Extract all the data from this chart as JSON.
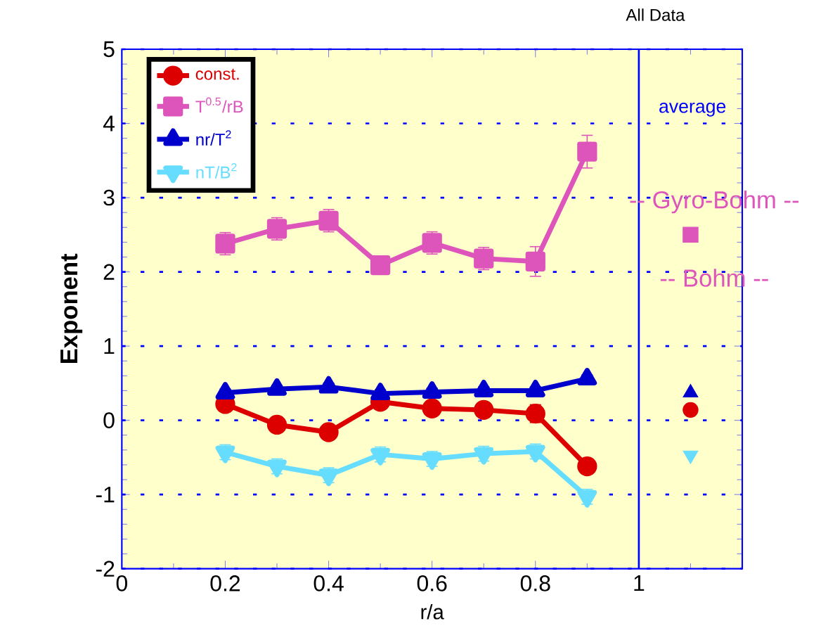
{
  "chart_data": {
    "type": "line",
    "title": "All Data",
    "xlabel": "r/a",
    "ylabel": "Exponent",
    "x": [
      0.2,
      0.3,
      0.4,
      0.5,
      0.6,
      0.7,
      0.8,
      0.9,
      1.1
    ],
    "xlim": [
      0,
      1.2
    ],
    "ylim": [
      -2,
      5
    ],
    "xticks": [
      0,
      0.2,
      0.4,
      0.6,
      0.8,
      1,
      {
        "value": 1.2,
        "label": null
      }
    ],
    "yticks": [
      -2,
      -1,
      0,
      1,
      2,
      3,
      4,
      5
    ],
    "grid": "y",
    "legend": "top left",
    "line_style": "solid",
    "series": [
      {
        "name": "const.",
        "color": "#dd0000",
        "marker": "circle",
        "values": [
          0.22,
          -0.06,
          -0.16,
          0.25,
          0.16,
          0.14,
          0.09,
          -0.62,
          null
        ],
        "errors": [
          0.1,
          0.1,
          0.1,
          0.1,
          0.1,
          0.1,
          0.12,
          0.1,
          null
        ]
      },
      {
        "name": "T$^{0.5}$/rB",
        "color": "#dd55bb",
        "marker": "square",
        "values": [
          2.38,
          2.58,
          2.69,
          2.09,
          2.39,
          2.18,
          2.14,
          3.62,
          null
        ],
        "errors": [
          0.15,
          0.15,
          0.15,
          0.12,
          0.15,
          0.15,
          0.2,
          0.22,
          null
        ]
      },
      {
        "name": "nr/T$^{2}$",
        "color": "#0000cc",
        "marker": "triangle",
        "values": [
          0.37,
          0.42,
          0.45,
          0.36,
          0.38,
          0.4,
          0.4,
          0.56,
          null
        ],
        "errors": [
          0.05,
          0.05,
          0.05,
          0.05,
          0.05,
          0.05,
          0.05,
          0.05,
          null
        ]
      },
      {
        "name": "nT/B$^{2}$",
        "color": "#66ddff",
        "marker": "triangle-down",
        "values": [
          -0.43,
          -0.62,
          -0.74,
          -0.46,
          -0.52,
          -0.45,
          -0.42,
          -1.03,
          null
        ],
        "errors": [
          0.1,
          0.1,
          0.1,
          0.1,
          0.1,
          0.1,
          0.1,
          0.1,
          null
        ]
      },
      {
        "type": "scatter",
        "color": "#dd0000",
        "marker": "circle",
        "values": [
          null,
          null,
          null,
          null,
          null,
          null,
          null,
          null,
          0.14
        ]
      },
      {
        "type": "scatter",
        "color": "#dd55bb",
        "marker": "square",
        "values": [
          null,
          null,
          null,
          null,
          null,
          null,
          null,
          null,
          2.5
        ]
      },
      {
        "type": "scatter",
        "color": "#0000cc",
        "marker": "triangle",
        "values": [
          null,
          null,
          null,
          null,
          null,
          null,
          null,
          null,
          0.37
        ]
      },
      {
        "type": "scatter",
        "color": "#66ddff",
        "marker": "triangle-down",
        "values": [
          null,
          null,
          null,
          null,
          null,
          null,
          null,
          null,
          -0.47
        ]
      }
    ],
    "ref_lines": [
      {
        "axis": "x",
        "value": 1,
        "color": "#0000ff"
      }
    ],
    "annotations": [
      "average",
      "-- Gyro-Bohm --",
      "-- Bohm --"
    ]
  }
}
